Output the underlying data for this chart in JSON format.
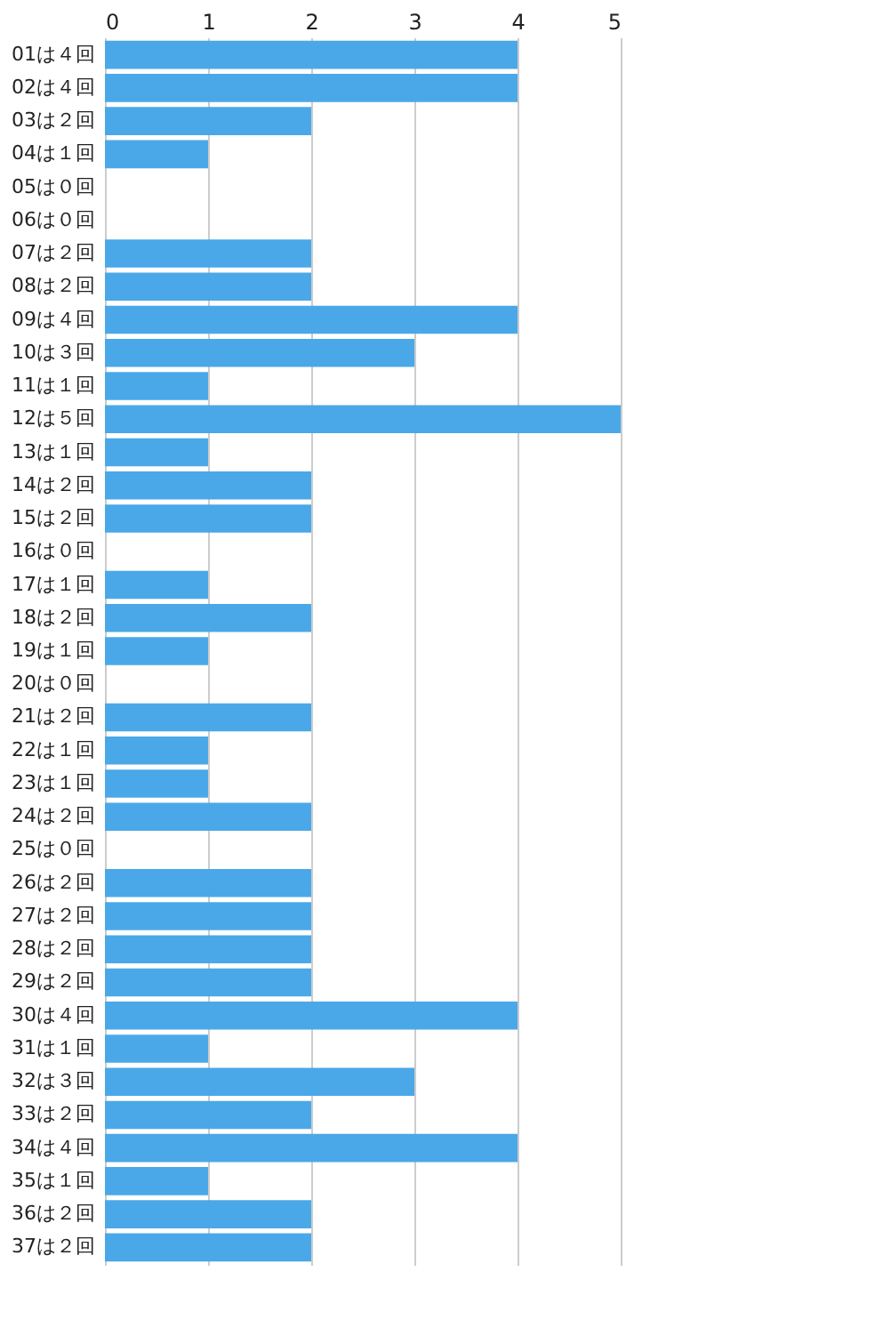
{
  "chart_data": {
    "type": "bar",
    "orientation": "horizontal",
    "categories": [
      "01は４回",
      "02は４回",
      "03は２回",
      "04は１回",
      "05は０回",
      "06は０回",
      "07は２回",
      "08は２回",
      "09は４回",
      "10は３回",
      "11は１回",
      "12は５回",
      "13は１回",
      "14は２回",
      "15は２回",
      "16は０回",
      "17は１回",
      "18は２回",
      "19は１回",
      "20は０回",
      "21は２回",
      "22は１回",
      "23は１回",
      "24は２回",
      "25は０回",
      "26は２回",
      "27は２回",
      "28は２回",
      "29は２回",
      "30は４回",
      "31は１回",
      "32は３回",
      "33は２回",
      "34は４回",
      "35は１回",
      "36は２回",
      "37は２回"
    ],
    "values": [
      4,
      4,
      2,
      1,
      0,
      0,
      2,
      2,
      4,
      3,
      1,
      5,
      1,
      2,
      2,
      0,
      1,
      2,
      1,
      0,
      2,
      1,
      1,
      2,
      0,
      2,
      2,
      2,
      2,
      4,
      1,
      3,
      2,
      4,
      1,
      2,
      2
    ],
    "color": "#4aa8e8",
    "xlim": [
      0,
      5
    ],
    "xticks": [
      0,
      1,
      2,
      3,
      4,
      5
    ],
    "grid": "x"
  }
}
